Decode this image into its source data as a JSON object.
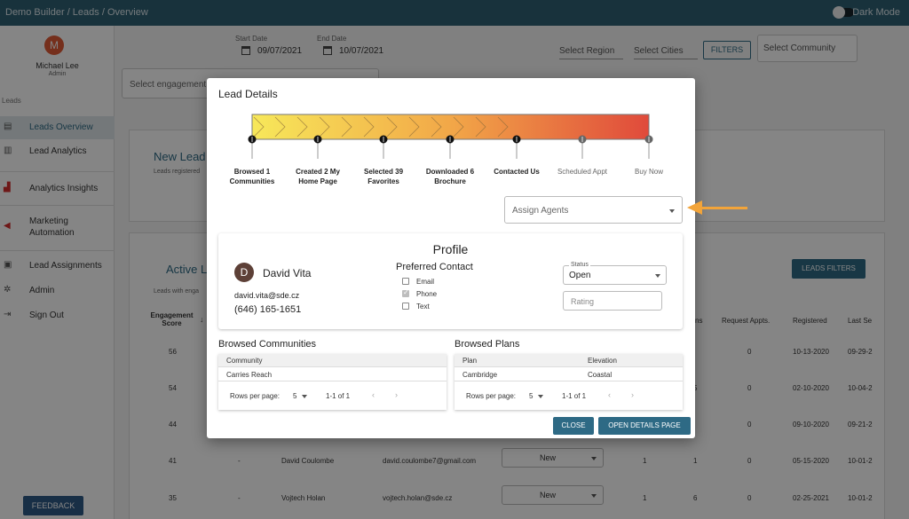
{
  "topbar": {
    "breadcrumb": "Demo Builder  /  Leads / Overview",
    "dark_mode_label": "Dark Mode"
  },
  "sidebar": {
    "user_initial": "M",
    "user_name": "Michael Lee",
    "user_role": "Admin",
    "section": "Leads",
    "items": [
      {
        "label": "Leads Overview",
        "icon": "clipboard-icon"
      },
      {
        "label": "Lead Analytics",
        "icon": "bar-chart-icon"
      },
      {
        "label": "Analytics Insights",
        "icon": "insights-icon"
      },
      {
        "label": "Marketing Automation",
        "icon": "megaphone-icon"
      },
      {
        "label": "Lead Assignments",
        "icon": "badge-icon"
      },
      {
        "label": "Admin",
        "icon": "gear-icon"
      },
      {
        "label": "Sign Out",
        "icon": "sign-out-icon"
      }
    ],
    "feedback": "FEEDBACK"
  },
  "filters": {
    "start_date_label": "Start Date",
    "start_date": "09/07/2021",
    "end_date_label": "End Date",
    "end_date": "10/07/2021",
    "region": "Select Region",
    "cities": "Select Cities",
    "filters_btn": "FILTERS",
    "community": "Select Community",
    "engagement_placeholder": "Select engagement s"
  },
  "background": {
    "new_leads_title": "New Lead",
    "new_leads_sub": "Leads registered",
    "active_title": "Active L",
    "active_sub": "Leads with enga",
    "leads_filters_btn": "LEADS FILTERS",
    "col_engagement": "Engagement Score",
    "col_right": [
      "ns",
      "Request Appts.",
      "Registered",
      "Last Se"
    ],
    "rows": [
      {
        "score": "56",
        "appts": "0",
        "registered": "10-13-2020",
        "last": "09-29-2"
      },
      {
        "score": "54",
        "col": "5",
        "appts": "0",
        "registered": "02-10-2020",
        "last": "10-04-2"
      },
      {
        "score": "44",
        "appts": "0",
        "registered": "09-10-2020",
        "last": "09-21-2"
      },
      {
        "score": "41",
        "dash": "-",
        "name": "David Coulombe",
        "email": "david.coulombe7@gmail.com",
        "status": "New",
        "a": "1",
        "b": "1",
        "appts": "0",
        "registered": "05-15-2020",
        "last": "10-01-2"
      },
      {
        "score": "35",
        "dash": "-",
        "name": "Vojtech Holan",
        "email": "vojtech.holan@sde.cz",
        "status": "New",
        "a": "1",
        "b": "6",
        "appts": "0",
        "registered": "02-25-2021",
        "last": "10-01-2"
      }
    ]
  },
  "modal": {
    "title": "Lead Details",
    "stages": [
      {
        "label": "Browsed 1 Communities",
        "done": true
      },
      {
        "label": "Created 2 My Home Page",
        "done": true
      },
      {
        "label": "Selected 39 Favorites",
        "done": true
      },
      {
        "label": "Downloaded 6 Brochure",
        "done": true
      },
      {
        "label": "Contacted Us",
        "done": true
      },
      {
        "label": "Scheduled Appt",
        "done": false
      },
      {
        "label": "Buy Now",
        "done": false
      }
    ],
    "assign_placeholder": "Assign Agents",
    "profile": {
      "title": "Profile",
      "initial": "D",
      "name": "David Vita",
      "email": "david.vita@sde.cz",
      "phone": "(646) 165-1651",
      "preferred_title": "Preferred Contact",
      "contacts": [
        {
          "label": "Email",
          "checked": false
        },
        {
          "label": "Phone",
          "checked": true
        },
        {
          "label": "Text",
          "checked": false
        }
      ],
      "status_legend": "Status",
      "status_value": "Open",
      "rating_placeholder": "Rating"
    },
    "communities": {
      "title": "Browsed Communities",
      "header": "Community",
      "rows": [
        "Carries Reach"
      ],
      "rows_per_page_label": "Rows per page:",
      "rows_per_page": "5",
      "range": "1-1 of 1"
    },
    "plans": {
      "title": "Browsed Plans",
      "headers": [
        "Plan",
        "Elevation"
      ],
      "rows": [
        [
          "Cambridge",
          "Coastal"
        ]
      ],
      "rows_per_page_label": "Rows per page:",
      "rows_per_page": "5",
      "range": "1-1 of 1"
    },
    "close_btn": "CLOSE",
    "open_btn": "OPEN DETAILS PAGE"
  },
  "colors": {
    "topbar": "#2e6073",
    "accent": "#2e6a85",
    "arrow": "#f2a43a",
    "progress_start": "#f7e85a",
    "progress_end": "#e04a3b"
  }
}
